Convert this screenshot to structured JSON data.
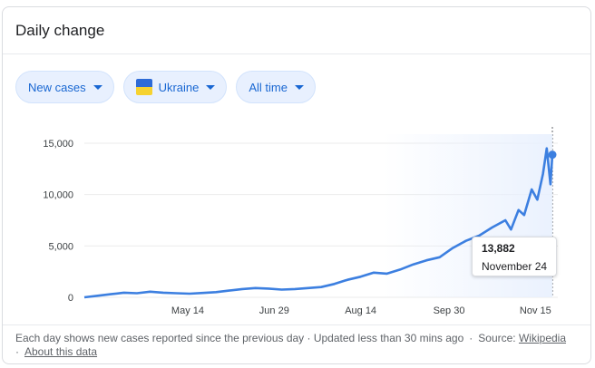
{
  "card": {
    "title": "Daily change"
  },
  "filters": [
    {
      "label": "New cases",
      "icon": "caret-down-icon"
    },
    {
      "label": "Ukraine",
      "icon": "ukraine-flag-icon"
    },
    {
      "label": "All time",
      "icon": "caret-down-icon"
    }
  ],
  "tooltip": {
    "value": "13,882",
    "date": "November 24"
  },
  "footer": {
    "note": "Each day shows new cases reported since the previous day · Updated less than 30 mins ago",
    "sep": "·",
    "source_label": "Source:",
    "source_link": "Wikipedia",
    "about_link": "About this data"
  },
  "colors": {
    "line": "#3c7fe0",
    "accent": "#1967d2",
    "chip_bg": "#e8f0fe",
    "flag_blue": "#2e6bd6",
    "flag_yellow": "#f6d22f"
  },
  "chart_data": {
    "type": "line",
    "title": "",
    "xlabel": "",
    "ylabel": "",
    "ylim": [
      0,
      15000
    ],
    "y_ticks": [
      "0",
      "5,000",
      "10,000",
      "15,000"
    ],
    "x_ticks": [
      "May 14",
      "Jun 29",
      "Aug 14",
      "Sep 30",
      "Nov 15"
    ],
    "x_tick_dates": [
      "2020-05-14",
      "2020-06-29",
      "2020-08-14",
      "2020-09-30",
      "2020-11-15"
    ],
    "grid": true,
    "series": [
      {
        "name": "",
        "x": [
          "2020-03-20",
          "2020-03-27",
          "2020-04-03",
          "2020-04-10",
          "2020-04-17",
          "2020-04-24",
          "2020-05-01",
          "2020-05-08",
          "2020-05-15",
          "2020-05-22",
          "2020-05-29",
          "2020-06-05",
          "2020-06-12",
          "2020-06-19",
          "2020-06-26",
          "2020-07-03",
          "2020-07-10",
          "2020-07-17",
          "2020-07-24",
          "2020-07-31",
          "2020-08-07",
          "2020-08-14",
          "2020-08-21",
          "2020-08-28",
          "2020-09-04",
          "2020-09-11",
          "2020-09-18",
          "2020-09-25",
          "2020-10-02",
          "2020-10-09",
          "2020-10-16",
          "2020-10-23",
          "2020-10-30",
          "2020-11-02",
          "2020-11-06",
          "2020-11-09",
          "2020-11-13",
          "2020-11-16",
          "2020-11-19",
          "2020-11-21",
          "2020-11-23",
          "2020-11-24"
        ],
        "values": [
          0,
          150,
          300,
          450,
          400,
          550,
          450,
          400,
          350,
          420,
          500,
          650,
          800,
          900,
          850,
          750,
          800,
          900,
          1000,
          1300,
          1700,
          2000,
          2400,
          2300,
          2700,
          3200,
          3600,
          3900,
          4800,
          5500,
          6000,
          6800,
          7500,
          6600,
          8500,
          8000,
          10500,
          9500,
          12000,
          14500,
          11000,
          13882
        ]
      }
    ]
  }
}
